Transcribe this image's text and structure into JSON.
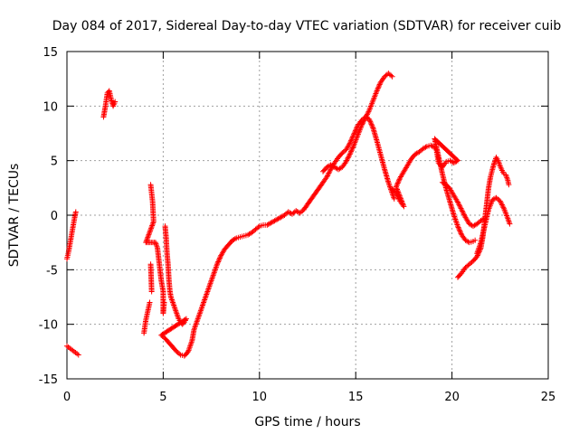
{
  "chart_data": {
    "type": "scatter",
    "title": "Day 084 of 2017, Sidereal Day-to-day VTEC variation (SDTVAR) for receiver cuib",
    "xlabel": "GPS time / hours",
    "ylabel": "SDTVAR / TECUs",
    "xlim": [
      0,
      25
    ],
    "ylim": [
      -15,
      15
    ],
    "xticks": [
      0,
      5,
      10,
      15,
      20,
      25
    ],
    "yticks": [
      -15,
      -10,
      -5,
      0,
      5,
      10,
      15
    ],
    "grid": true,
    "marker": "+",
    "series": [
      {
        "name": "SDTVAR",
        "color": "#ff0000",
        "points": [
          [
            0.0,
            -12.0
          ],
          [
            0.15,
            -12.2
          ],
          [
            0.3,
            -12.4
          ],
          [
            0.45,
            -12.6
          ],
          [
            0.6,
            -12.8
          ],
          [
            0.0,
            -4.0
          ],
          [
            0.08,
            -3.4
          ],
          [
            0.16,
            -2.6
          ],
          [
            0.24,
            -1.8
          ],
          [
            0.32,
            -1.0
          ],
          [
            0.4,
            -0.2
          ],
          [
            0.46,
            0.3
          ],
          [
            1.9,
            9.0
          ],
          [
            2.0,
            10.0
          ],
          [
            2.1,
            11.2
          ],
          [
            2.2,
            11.4
          ],
          [
            2.3,
            10.6
          ],
          [
            2.4,
            10.0
          ],
          [
            2.5,
            10.4
          ],
          [
            4.0,
            -10.8
          ],
          [
            4.1,
            -9.6
          ],
          [
            4.2,
            -8.8
          ],
          [
            4.3,
            -8.0
          ],
          [
            4.35,
            -4.5
          ],
          [
            4.4,
            -7.0
          ],
          [
            4.35,
            2.8
          ],
          [
            4.4,
            2.0
          ],
          [
            4.45,
            1.2
          ],
          [
            4.5,
            -0.6
          ],
          [
            4.1,
            -2.5
          ],
          [
            4.6,
            -2.5
          ],
          [
            4.7,
            -3.0
          ],
          [
            4.8,
            -4.5
          ],
          [
            4.9,
            -6.0
          ],
          [
            5.0,
            -7.0
          ],
          [
            5.0,
            -9.0
          ],
          [
            5.05,
            -8.0
          ],
          [
            5.1,
            -1.0
          ],
          [
            5.15,
            -2.0
          ],
          [
            5.2,
            -3.5
          ],
          [
            5.25,
            -4.5
          ],
          [
            5.3,
            -6.0
          ],
          [
            5.35,
            -7.0
          ],
          [
            5.4,
            -7.5
          ],
          [
            5.5,
            -8.0
          ],
          [
            5.6,
            -8.5
          ],
          [
            5.7,
            -9.0
          ],
          [
            5.8,
            -9.5
          ],
          [
            5.9,
            -9.8
          ],
          [
            6.0,
            -10.0
          ],
          [
            6.1,
            -9.8
          ],
          [
            6.2,
            -9.5
          ],
          [
            4.9,
            -11.0
          ],
          [
            5.1,
            -11.3
          ],
          [
            5.3,
            -11.7
          ],
          [
            5.5,
            -12.1
          ],
          [
            5.7,
            -12.5
          ],
          [
            5.9,
            -12.8
          ],
          [
            6.1,
            -12.9
          ],
          [
            6.3,
            -12.5
          ],
          [
            6.5,
            -11.5
          ],
          [
            6.6,
            -10.5
          ],
          [
            6.8,
            -9.5
          ],
          [
            7.0,
            -8.5
          ],
          [
            7.2,
            -7.5
          ],
          [
            7.4,
            -6.5
          ],
          [
            7.6,
            -5.5
          ],
          [
            7.8,
            -4.5
          ],
          [
            8.0,
            -3.7
          ],
          [
            8.2,
            -3.1
          ],
          [
            8.4,
            -2.7
          ],
          [
            8.6,
            -2.3
          ],
          [
            8.8,
            -2.1
          ],
          [
            9.0,
            -2.0
          ],
          [
            9.2,
            -1.9
          ],
          [
            9.4,
            -1.8
          ],
          [
            9.6,
            -1.6
          ],
          [
            9.8,
            -1.3
          ],
          [
            10.0,
            -1.0
          ],
          [
            10.2,
            -0.9
          ],
          [
            10.4,
            -0.9
          ],
          [
            11.3,
            0.0
          ],
          [
            11.5,
            0.3
          ],
          [
            11.7,
            0.1
          ],
          [
            11.9,
            0.4
          ],
          [
            12.1,
            0.2
          ],
          [
            12.3,
            0.5
          ],
          [
            13.3,
            3.0
          ],
          [
            13.5,
            3.5
          ],
          [
            13.7,
            4.2
          ],
          [
            13.9,
            4.8
          ],
          [
            14.1,
            5.3
          ],
          [
            14.3,
            5.7
          ],
          [
            14.5,
            6.0
          ],
          [
            14.7,
            6.6
          ],
          [
            14.9,
            7.4
          ],
          [
            15.1,
            8.2
          ],
          [
            15.3,
            8.7
          ],
          [
            15.5,
            9.0
          ],
          [
            15.7,
            8.8
          ],
          [
            15.9,
            8.0
          ],
          [
            16.1,
            6.8
          ],
          [
            16.3,
            5.5
          ],
          [
            16.5,
            4.2
          ],
          [
            16.7,
            3.0
          ],
          [
            16.9,
            2.0
          ],
          [
            17.0,
            1.5
          ],
          [
            13.3,
            4.0
          ],
          [
            13.5,
            4.4
          ],
          [
            13.7,
            4.6
          ],
          [
            13.9,
            4.4
          ],
          [
            14.1,
            4.2
          ],
          [
            14.3,
            4.4
          ],
          [
            14.5,
            4.9
          ],
          [
            14.7,
            5.6
          ],
          [
            14.9,
            6.4
          ],
          [
            15.1,
            7.3
          ],
          [
            15.3,
            8.2
          ],
          [
            15.5,
            8.9
          ],
          [
            15.7,
            9.6
          ],
          [
            15.9,
            10.5
          ],
          [
            16.1,
            11.4
          ],
          [
            16.3,
            12.2
          ],
          [
            16.5,
            12.7
          ],
          [
            16.7,
            13.0
          ],
          [
            16.9,
            12.7
          ],
          [
            16.9,
            2.4
          ],
          [
            17.1,
            2.0
          ],
          [
            17.3,
            1.3
          ],
          [
            17.5,
            0.8
          ],
          [
            17.1,
            2.6
          ],
          [
            17.3,
            3.4
          ],
          [
            17.5,
            4.0
          ],
          [
            17.7,
            4.6
          ],
          [
            17.9,
            5.2
          ],
          [
            18.1,
            5.6
          ],
          [
            18.3,
            5.8
          ],
          [
            18.5,
            6.1
          ],
          [
            18.7,
            6.3
          ],
          [
            18.9,
            6.4
          ],
          [
            19.1,
            6.2
          ],
          [
            19.2,
            5.9
          ],
          [
            19.3,
            4.8
          ],
          [
            19.5,
            4.4
          ],
          [
            19.7,
            4.9
          ],
          [
            19.9,
            5.0
          ],
          [
            20.1,
            4.8
          ],
          [
            20.3,
            5.0
          ],
          [
            19.1,
            7.0
          ],
          [
            19.3,
            5.4
          ],
          [
            19.5,
            3.8
          ],
          [
            19.7,
            2.4
          ],
          [
            19.9,
            1.2
          ],
          [
            20.1,
            0.0
          ],
          [
            20.3,
            -1.0
          ],
          [
            20.5,
            -1.8
          ],
          [
            20.7,
            -2.3
          ],
          [
            20.9,
            -2.5
          ],
          [
            21.1,
            -2.4
          ],
          [
            21.2,
            -2.3
          ],
          [
            19.5,
            3.0
          ],
          [
            19.7,
            2.8
          ],
          [
            19.9,
            2.4
          ],
          [
            20.1,
            1.8
          ],
          [
            20.3,
            1.2
          ],
          [
            20.5,
            0.5
          ],
          [
            20.7,
            -0.2
          ],
          [
            20.9,
            -0.8
          ],
          [
            21.1,
            -1.0
          ],
          [
            21.3,
            -0.8
          ],
          [
            21.5,
            -0.5
          ],
          [
            21.7,
            -0.3
          ],
          [
            20.3,
            -5.7
          ],
          [
            20.5,
            -5.3
          ],
          [
            20.7,
            -4.8
          ],
          [
            20.9,
            -4.5
          ],
          [
            21.1,
            -4.2
          ],
          [
            21.3,
            -3.8
          ],
          [
            21.5,
            -3.0
          ],
          [
            21.6,
            -2.0
          ],
          [
            21.7,
            -0.5
          ],
          [
            21.8,
            1.0
          ],
          [
            21.9,
            2.5
          ],
          [
            22.0,
            3.5
          ],
          [
            22.1,
            4.2
          ],
          [
            22.2,
            4.8
          ],
          [
            22.3,
            5.3
          ],
          [
            22.4,
            5.0
          ],
          [
            22.5,
            4.5
          ],
          [
            22.6,
            4.1
          ],
          [
            22.7,
            3.8
          ],
          [
            22.8,
            3.7
          ],
          [
            22.9,
            3.2
          ],
          [
            22.95,
            2.8
          ],
          [
            21.3,
            -3.5
          ],
          [
            21.5,
            -2.5
          ],
          [
            21.7,
            -1.0
          ],
          [
            21.9,
            0.5
          ],
          [
            22.1,
            1.4
          ],
          [
            22.3,
            1.6
          ],
          [
            22.5,
            1.3
          ],
          [
            22.7,
            0.6
          ],
          [
            22.9,
            -0.3
          ],
          [
            23.0,
            -0.8
          ]
        ]
      }
    ]
  }
}
